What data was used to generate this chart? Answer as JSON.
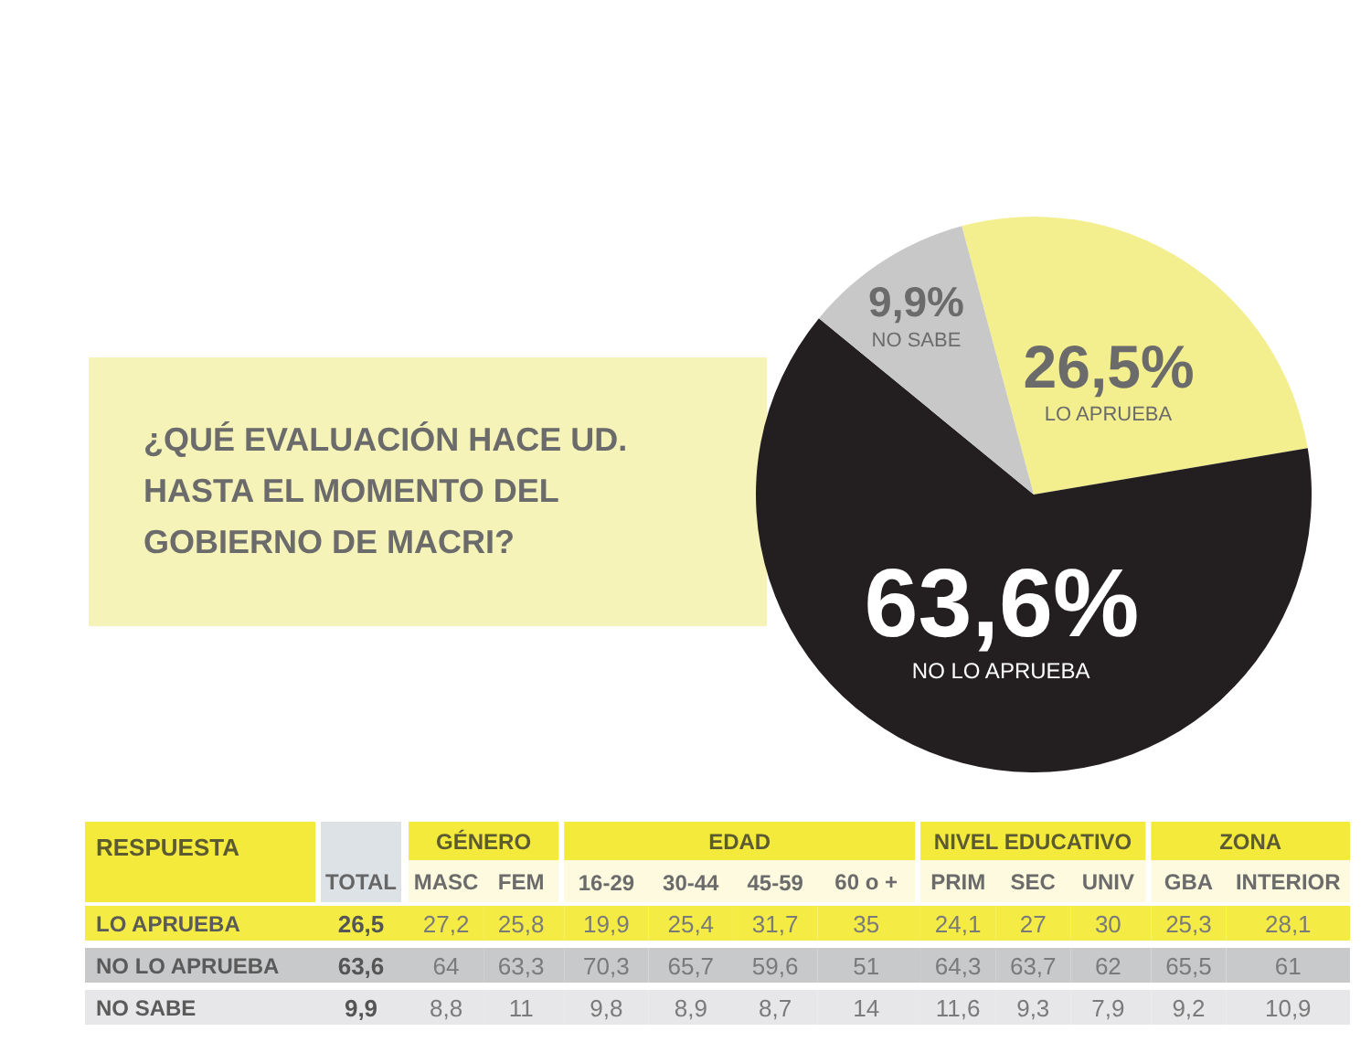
{
  "chart_data": [
    {
      "type": "pie",
      "title": "¿QUÉ EVALUACIÓN HACE UD. HASTA EL MOMENTO DEL GOBIERNO DE MACRI?",
      "categories": [
        "LO APRUEBA",
        "NO LO APRUEBA",
        "NO SABE"
      ],
      "values": [
        26.5,
        63.6,
        9.9
      ],
      "colors": [
        "#f3ef8f",
        "#231f20",
        "#c8c8c9"
      ],
      "value_labels": [
        "26,5%",
        "63,6%",
        "9,9%"
      ]
    },
    {
      "type": "other",
      "categories": [
        "TOTAL",
        "MASC",
        "FEM",
        "16-29",
        "30-44",
        "45-59",
        "60 o +",
        "PRIM",
        "SEC",
        "UNIV",
        "GBA",
        "INTERIOR"
      ],
      "annotations": [
        "RESPUESTA",
        "GÉNERO",
        "EDAD",
        "NIVEL EDUCATIVO",
        "ZONA"
      ],
      "series": [
        {
          "name": "LO APRUEBA",
          "color": "#f4ec45",
          "values": [
            26.5,
            27.2,
            25.8,
            19.9,
            25.4,
            31.7,
            35,
            24.1,
            27,
            30,
            25.3,
            28.1
          ],
          "value_labels": [
            "26,5",
            "27,2",
            "25,8",
            "19,9",
            "25,4",
            "31,7",
            "35",
            "24,1",
            "27",
            "30",
            "25,3",
            "28,1"
          ]
        },
        {
          "name": "NO LO APRUEBA",
          "color": "#c8c9cb",
          "values": [
            63.6,
            64,
            63.3,
            70.3,
            65.7,
            59.6,
            51,
            64.3,
            63.7,
            62,
            65.5,
            61
          ],
          "value_labels": [
            "63,6",
            "64",
            "63,3",
            "70,3",
            "65,7",
            "59,6",
            "51",
            "64,3",
            "63,7",
            "62",
            "65,5",
            "61"
          ]
        },
        {
          "name": "NO SABE",
          "color": "#e7e7e9",
          "values": [
            9.9,
            8.8,
            11,
            9.8,
            8.9,
            8.7,
            14,
            11.6,
            9.3,
            7.9,
            9.2,
            10.9
          ],
          "value_labels": [
            "9,9",
            "8,8",
            "11",
            "9,8",
            "8,9",
            "8,7",
            "14",
            "11,6",
            "9,3",
            "7,9",
            "9,2",
            "10,9"
          ]
        }
      ]
    }
  ]
}
